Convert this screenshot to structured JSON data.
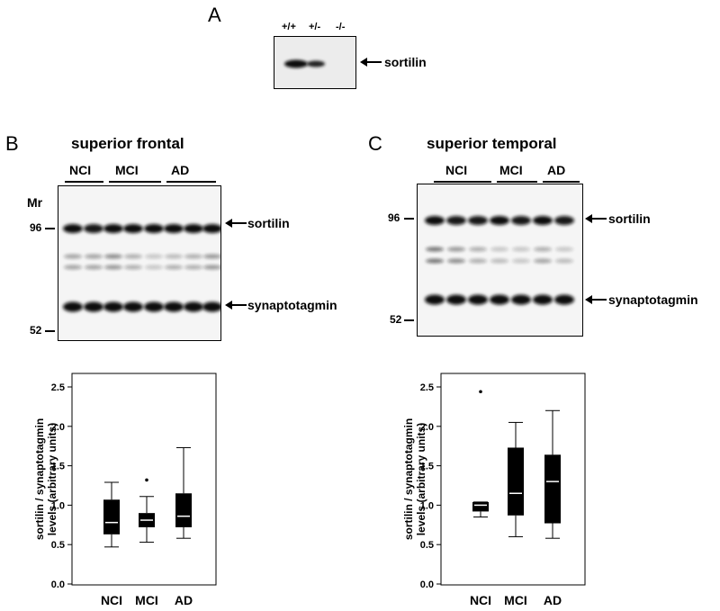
{
  "panel_a": {
    "letter": "A",
    "lanes": [
      "+/+",
      "+/-",
      "-/-"
    ],
    "band_label": "sortilin",
    "band_intensity": [
      1.0,
      0.8,
      0.0
    ]
  },
  "panel_b": {
    "letter": "B",
    "title": "superior frontal",
    "groups": [
      "NCI",
      "MCI",
      "AD"
    ],
    "mr_label": "Mr",
    "markers": [
      "96",
      "52"
    ],
    "bands": [
      "sortilin",
      "synaptotagmin"
    ]
  },
  "panel_c": {
    "letter": "C",
    "title": "superior temporal",
    "groups": [
      "NCI",
      "MCI",
      "AD"
    ],
    "markers": [
      "96",
      "52"
    ],
    "bands": [
      "sortilin",
      "synaptotagmin"
    ]
  },
  "chart_data": [
    {
      "type": "box",
      "panel": "B",
      "ylabel": "sortilin / synaptotagmin levels (arbitrary units)",
      "ylim": [
        0.0,
        2.6
      ],
      "yticks": [
        "0.0",
        "0.5",
        "1.0",
        "1.5",
        "2.0",
        "2.5"
      ],
      "categories": [
        "NCI",
        "MCI",
        "AD"
      ],
      "boxes": [
        {
          "min": 0.47,
          "q1": 0.63,
          "median": 0.78,
          "q3": 1.07,
          "max": 1.29,
          "outliers": []
        },
        {
          "min": 0.53,
          "q1": 0.72,
          "median": 0.81,
          "q3": 0.9,
          "max": 1.11,
          "outliers": [
            1.32
          ]
        },
        {
          "min": 0.58,
          "q1": 0.72,
          "median": 0.86,
          "q3": 1.15,
          "max": 1.73,
          "outliers": []
        }
      ]
    },
    {
      "type": "box",
      "panel": "C",
      "ylabel": "sortilin / synaptotagmin levels (arbitrary units)",
      "ylim": [
        0.0,
        2.6
      ],
      "yticks": [
        "0.0",
        "0.5",
        "1.0",
        "1.5",
        "2.0",
        "2.5"
      ],
      "categories": [
        "NCI",
        "MCI",
        "AD"
      ],
      "boxes": [
        {
          "min": 0.85,
          "q1": 0.92,
          "median": 1.0,
          "q3": 1.04,
          "max": 1.04,
          "outliers": [
            2.44
          ]
        },
        {
          "min": 0.6,
          "q1": 0.87,
          "median": 1.15,
          "q3": 1.73,
          "max": 2.05,
          "outliers": []
        },
        {
          "min": 0.58,
          "q1": 0.77,
          "median": 1.3,
          "q3": 1.64,
          "max": 2.2,
          "outliers": []
        }
      ]
    }
  ]
}
